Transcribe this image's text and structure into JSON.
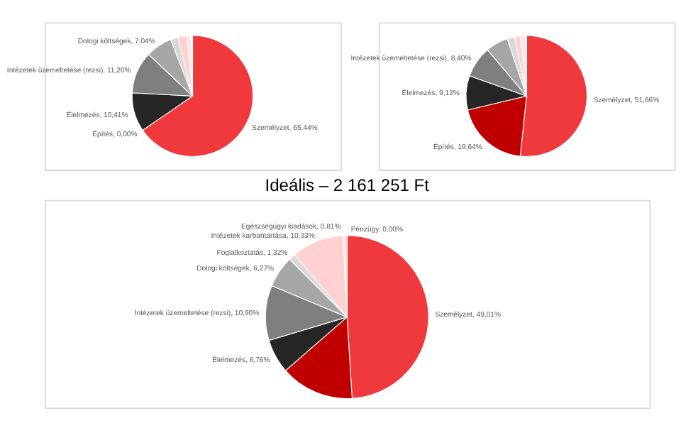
{
  "chart_data": [
    {
      "type": "pie",
      "categories": [
        "Személyzet, 65,44%",
        "Építés, 0,00%",
        "Élelmezés, 10,41%",
        "Intézetek üzemeltetése (rezsi), 11,20%",
        "Dologi költségek, 7,04%",
        null,
        null,
        null,
        null
      ],
      "values": [
        65.44,
        0.0,
        10.41,
        11.2,
        7.04,
        2.0,
        2.4,
        1.0,
        0.51
      ],
      "colors": [
        "#f0393c",
        "#c00000",
        "#262626",
        "#7f7f7f",
        "#a6a6a6",
        "#d9d9d9",
        "#ffd1d1",
        "#fbe3e3",
        "#fff5f5"
      ]
    },
    {
      "type": "pie",
      "categories": [
        "Személyzet, 51,66%",
        "Építés, 19,64%",
        "Élelmezés, 9,12%",
        "Intézetek üzemeltetése (rezsi), 8,40%",
        null,
        null,
        null,
        null,
        null
      ],
      "values": [
        51.66,
        19.64,
        9.12,
        8.4,
        6.0,
        2.0,
        1.6,
        1.2,
        0.38
      ],
      "colors": [
        "#f0393c",
        "#c00000",
        "#262626",
        "#7f7f7f",
        "#a6a6a6",
        "#d9d9d9",
        "#ffd1d1",
        "#fbe3e3",
        "#fff5f5"
      ]
    },
    {
      "type": "pie",
      "title": "Ideális – 2 161 251 Ft",
      "categories": [
        "Személyzet, 49,01%",
        null,
        "Élelmezés, 6,76%",
        "Intézetek üzemeltetése (rezsi), 10,90%",
        "Dologi költségek, 6,27%",
        "Foglalkoztatás, 1,32%",
        "Intézetek karbantartása, 10,33%",
        "Egészségügyi kiadások, 0,81%",
        "Pénzügy, 0,00%"
      ],
      "values": [
        49.01,
        14.6,
        6.76,
        10.9,
        6.27,
        1.32,
        10.33,
        0.81,
        0.0
      ],
      "colors": [
        "#f0393c",
        "#c00000",
        "#262626",
        "#7f7f7f",
        "#a6a6a6",
        "#d9d9d9",
        "#ffd1d1",
        "#fbe3e3",
        "#fff5f5"
      ]
    }
  ]
}
